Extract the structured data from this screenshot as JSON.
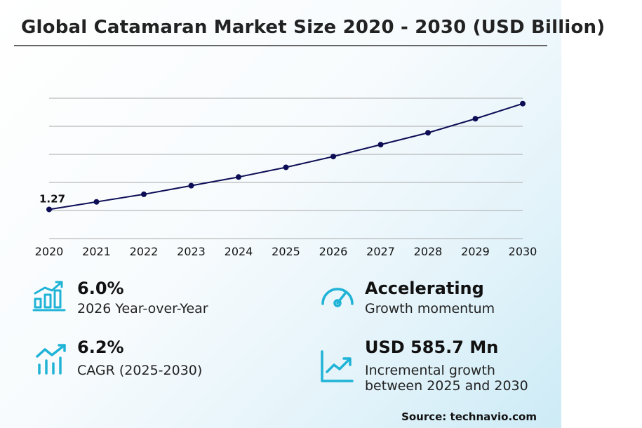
{
  "title": "Global Catamaran Market Size 2020 - 2030 (USD Billion)",
  "chart_data": {
    "type": "line",
    "x": [
      "2020",
      "2021",
      "2022",
      "2023",
      "2024",
      "2025",
      "2026",
      "2027",
      "2028",
      "2029",
      "2030"
    ],
    "series": [
      {
        "values": [
          1.27,
          1.34,
          1.41,
          1.49,
          1.57,
          1.66,
          1.76,
          1.87,
          1.98,
          2.11,
          2.25
        ]
      }
    ],
    "data_labels": [
      {
        "index": 0,
        "text": "1.27"
      }
    ],
    "ylim": [
      1.0,
      2.3
    ],
    "grid": true,
    "line_color": "#0d0d55"
  },
  "stats": [
    {
      "value": "6.0%",
      "desc": "2026 Year-over-Year",
      "icon": "bar-chart-growth-icon"
    },
    {
      "value": "Accelerating",
      "desc": "Growth momentum",
      "icon": "speedometer-icon"
    },
    {
      "value": "6.2%",
      "desc": "CAGR (2025-2030)",
      "icon": "trend-bars-icon"
    },
    {
      "value": "USD 585.7 Mn",
      "desc_line1": "Incremental growth",
      "desc_line2": "between 2025 and 2030",
      "icon": "line-chart-up-icon"
    }
  ],
  "source": "Source: technavio.com",
  "colors": {
    "accent": "#1fb3d6",
    "line": "#0d0d55",
    "grid": "#a8a8a8"
  }
}
